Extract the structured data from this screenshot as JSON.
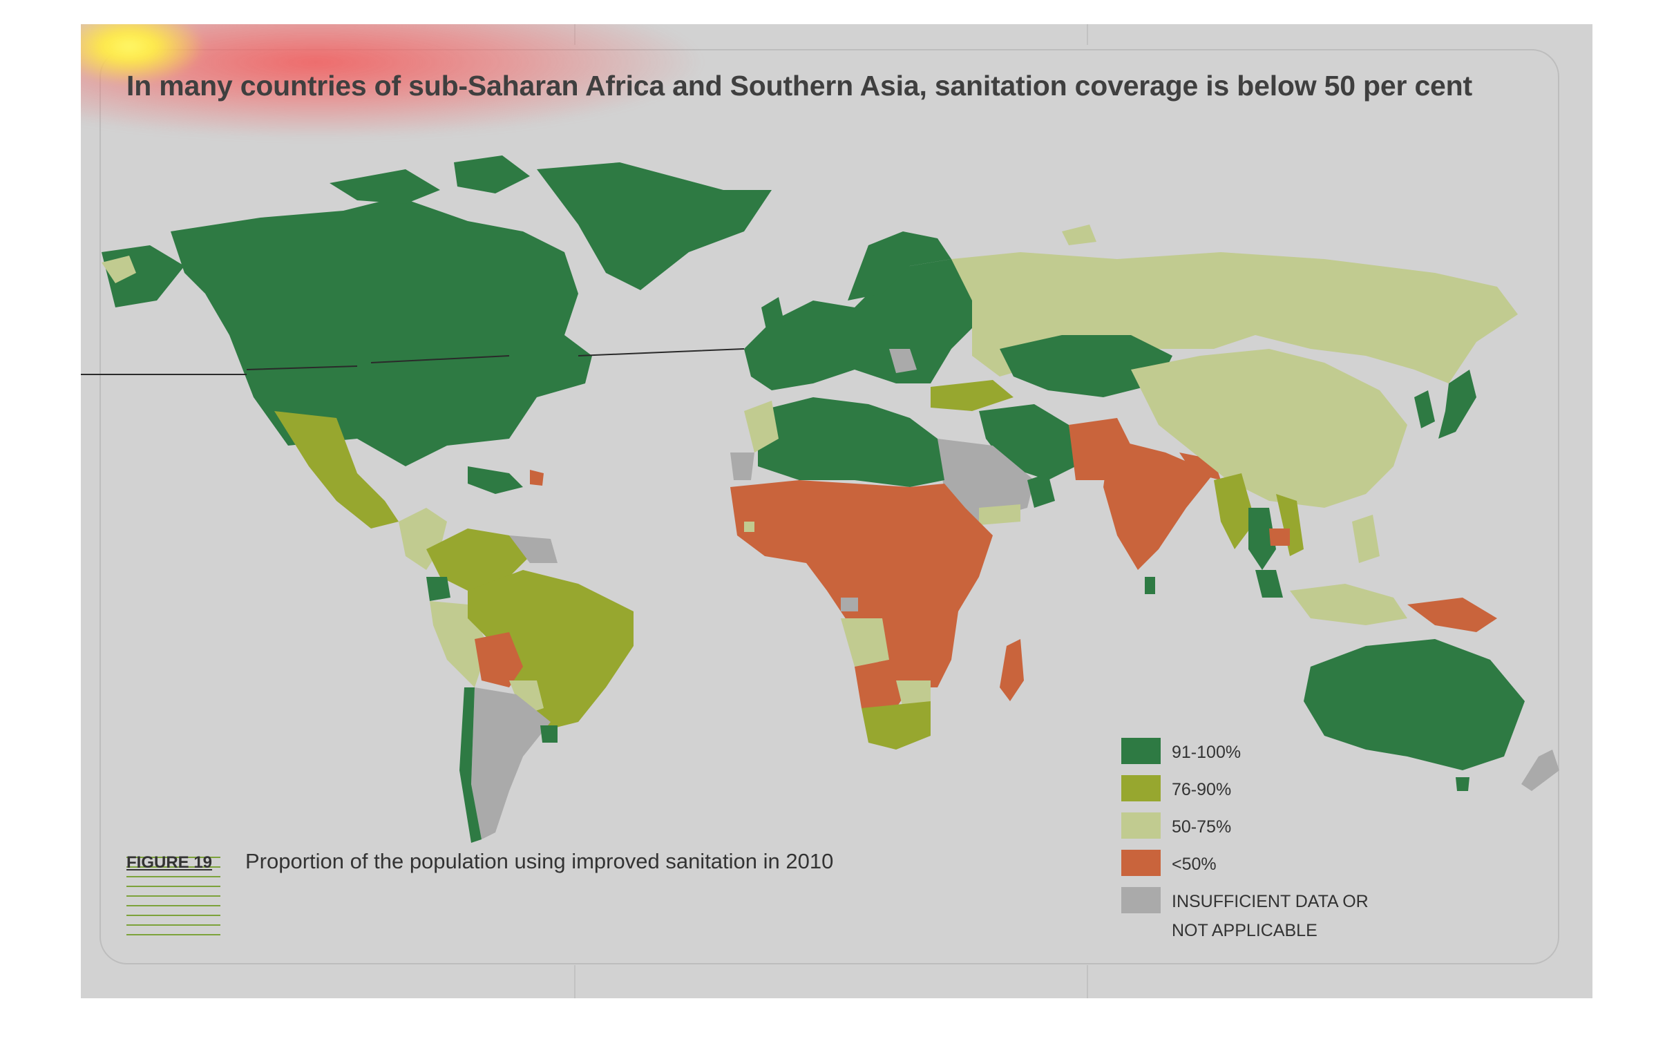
{
  "title": "In many countries of sub-Saharan Africa and Southern Asia, sanitation coverage is below 50 per cent",
  "figure": {
    "label": "FIGURE 19",
    "caption": "Proportion of the population using improved sanitation in 2010"
  },
  "legend": [
    {
      "label": "91-100%",
      "color": "#2e7a43"
    },
    {
      "label": "76-90%",
      "color": "#97a72f"
    },
    {
      "label": "50-75%",
      "color": "#c1cb90"
    },
    {
      "label": "<50%",
      "color": "#c9643c"
    },
    {
      "label": "INSUFFICIENT DATA OR NOT APPLICABLE",
      "color": "#aaaaaa"
    }
  ],
  "colors": {
    "background": "#d2d2d2",
    "highlight_glow": "#f25c5c",
    "figure_lines": "#7ca23a"
  }
}
